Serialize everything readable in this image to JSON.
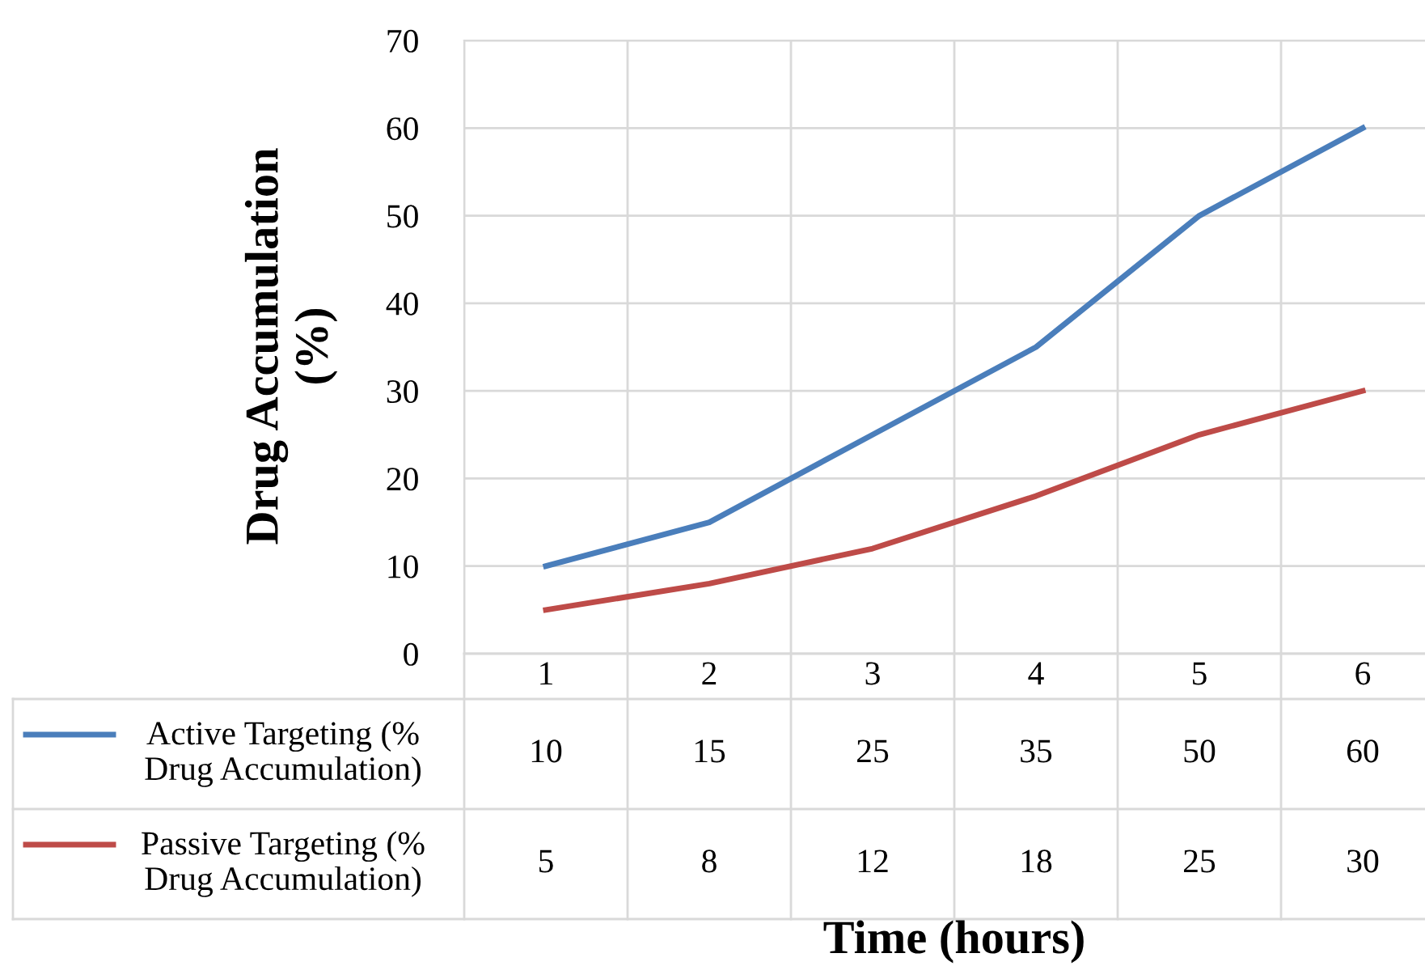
{
  "chart_data": {
    "type": "line",
    "xlabel": "Time (hours)",
    "ylabel": "Drug Accumulation\n(%)",
    "categories": [
      "1",
      "2",
      "3",
      "4",
      "5",
      "6"
    ],
    "series": [
      {
        "name": "Active Targeting (%\nDrug Accumulation)",
        "color": "#4a7ebb",
        "values": [
          10,
          15,
          25,
          35,
          50,
          60
        ]
      },
      {
        "name": "Passive Targeting (%\nDrug Accumulation)",
        "color": "#be4b48",
        "values": [
          5,
          8,
          12,
          18,
          25,
          30
        ]
      }
    ],
    "ylim": [
      0,
      70
    ],
    "yticks": [
      0,
      10,
      20,
      30,
      40,
      50,
      60,
      70
    ],
    "grid": true,
    "legend": "bottom left",
    "data_labels": true,
    "marker": "none",
    "line_style": "solid"
  }
}
